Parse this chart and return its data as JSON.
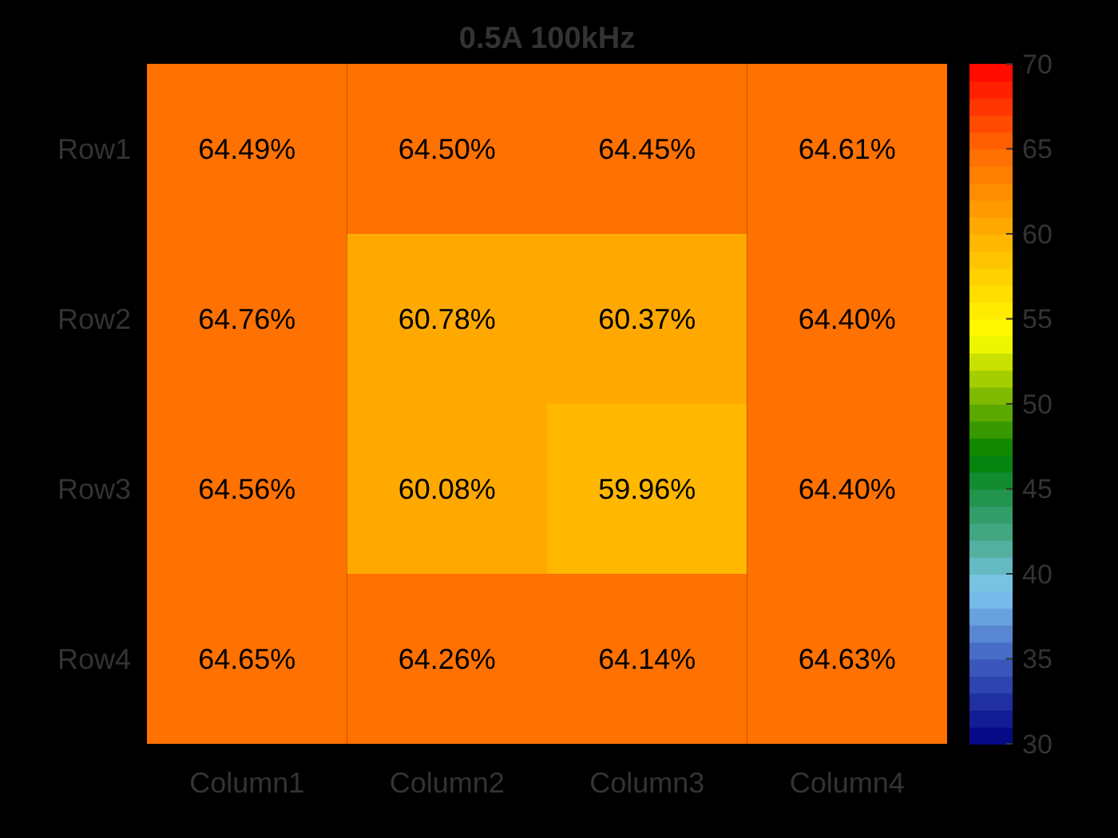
{
  "chart_data": {
    "type": "heatmap",
    "title": "0.5A 100kHz",
    "categories": [
      "Column1",
      "Column2",
      "Column3",
      "Column4"
    ],
    "y_categories": [
      "Row1",
      "Row2",
      "Row3",
      "Row4"
    ],
    "cells": [
      [
        64.49,
        64.5,
        64.45,
        64.61
      ],
      [
        64.76,
        60.78,
        60.37,
        64.4
      ],
      [
        64.56,
        60.08,
        59.96,
        64.4
      ],
      [
        64.65,
        64.26,
        64.14,
        64.63
      ]
    ],
    "cell_labels": [
      [
        "64.49%",
        "64.50%",
        "64.45%",
        "64.61%"
      ],
      [
        "64.76%",
        "60.78%",
        "60.37%",
        "64.40%"
      ],
      [
        "64.56%",
        "60.08%",
        "59.96%",
        "64.40%"
      ],
      [
        "64.65%",
        "64.26%",
        "64.14%",
        "64.63%"
      ]
    ],
    "clim": [
      30,
      70
    ],
    "cticks": [
      30,
      35,
      40,
      45,
      50,
      55,
      60,
      65,
      70
    ]
  }
}
